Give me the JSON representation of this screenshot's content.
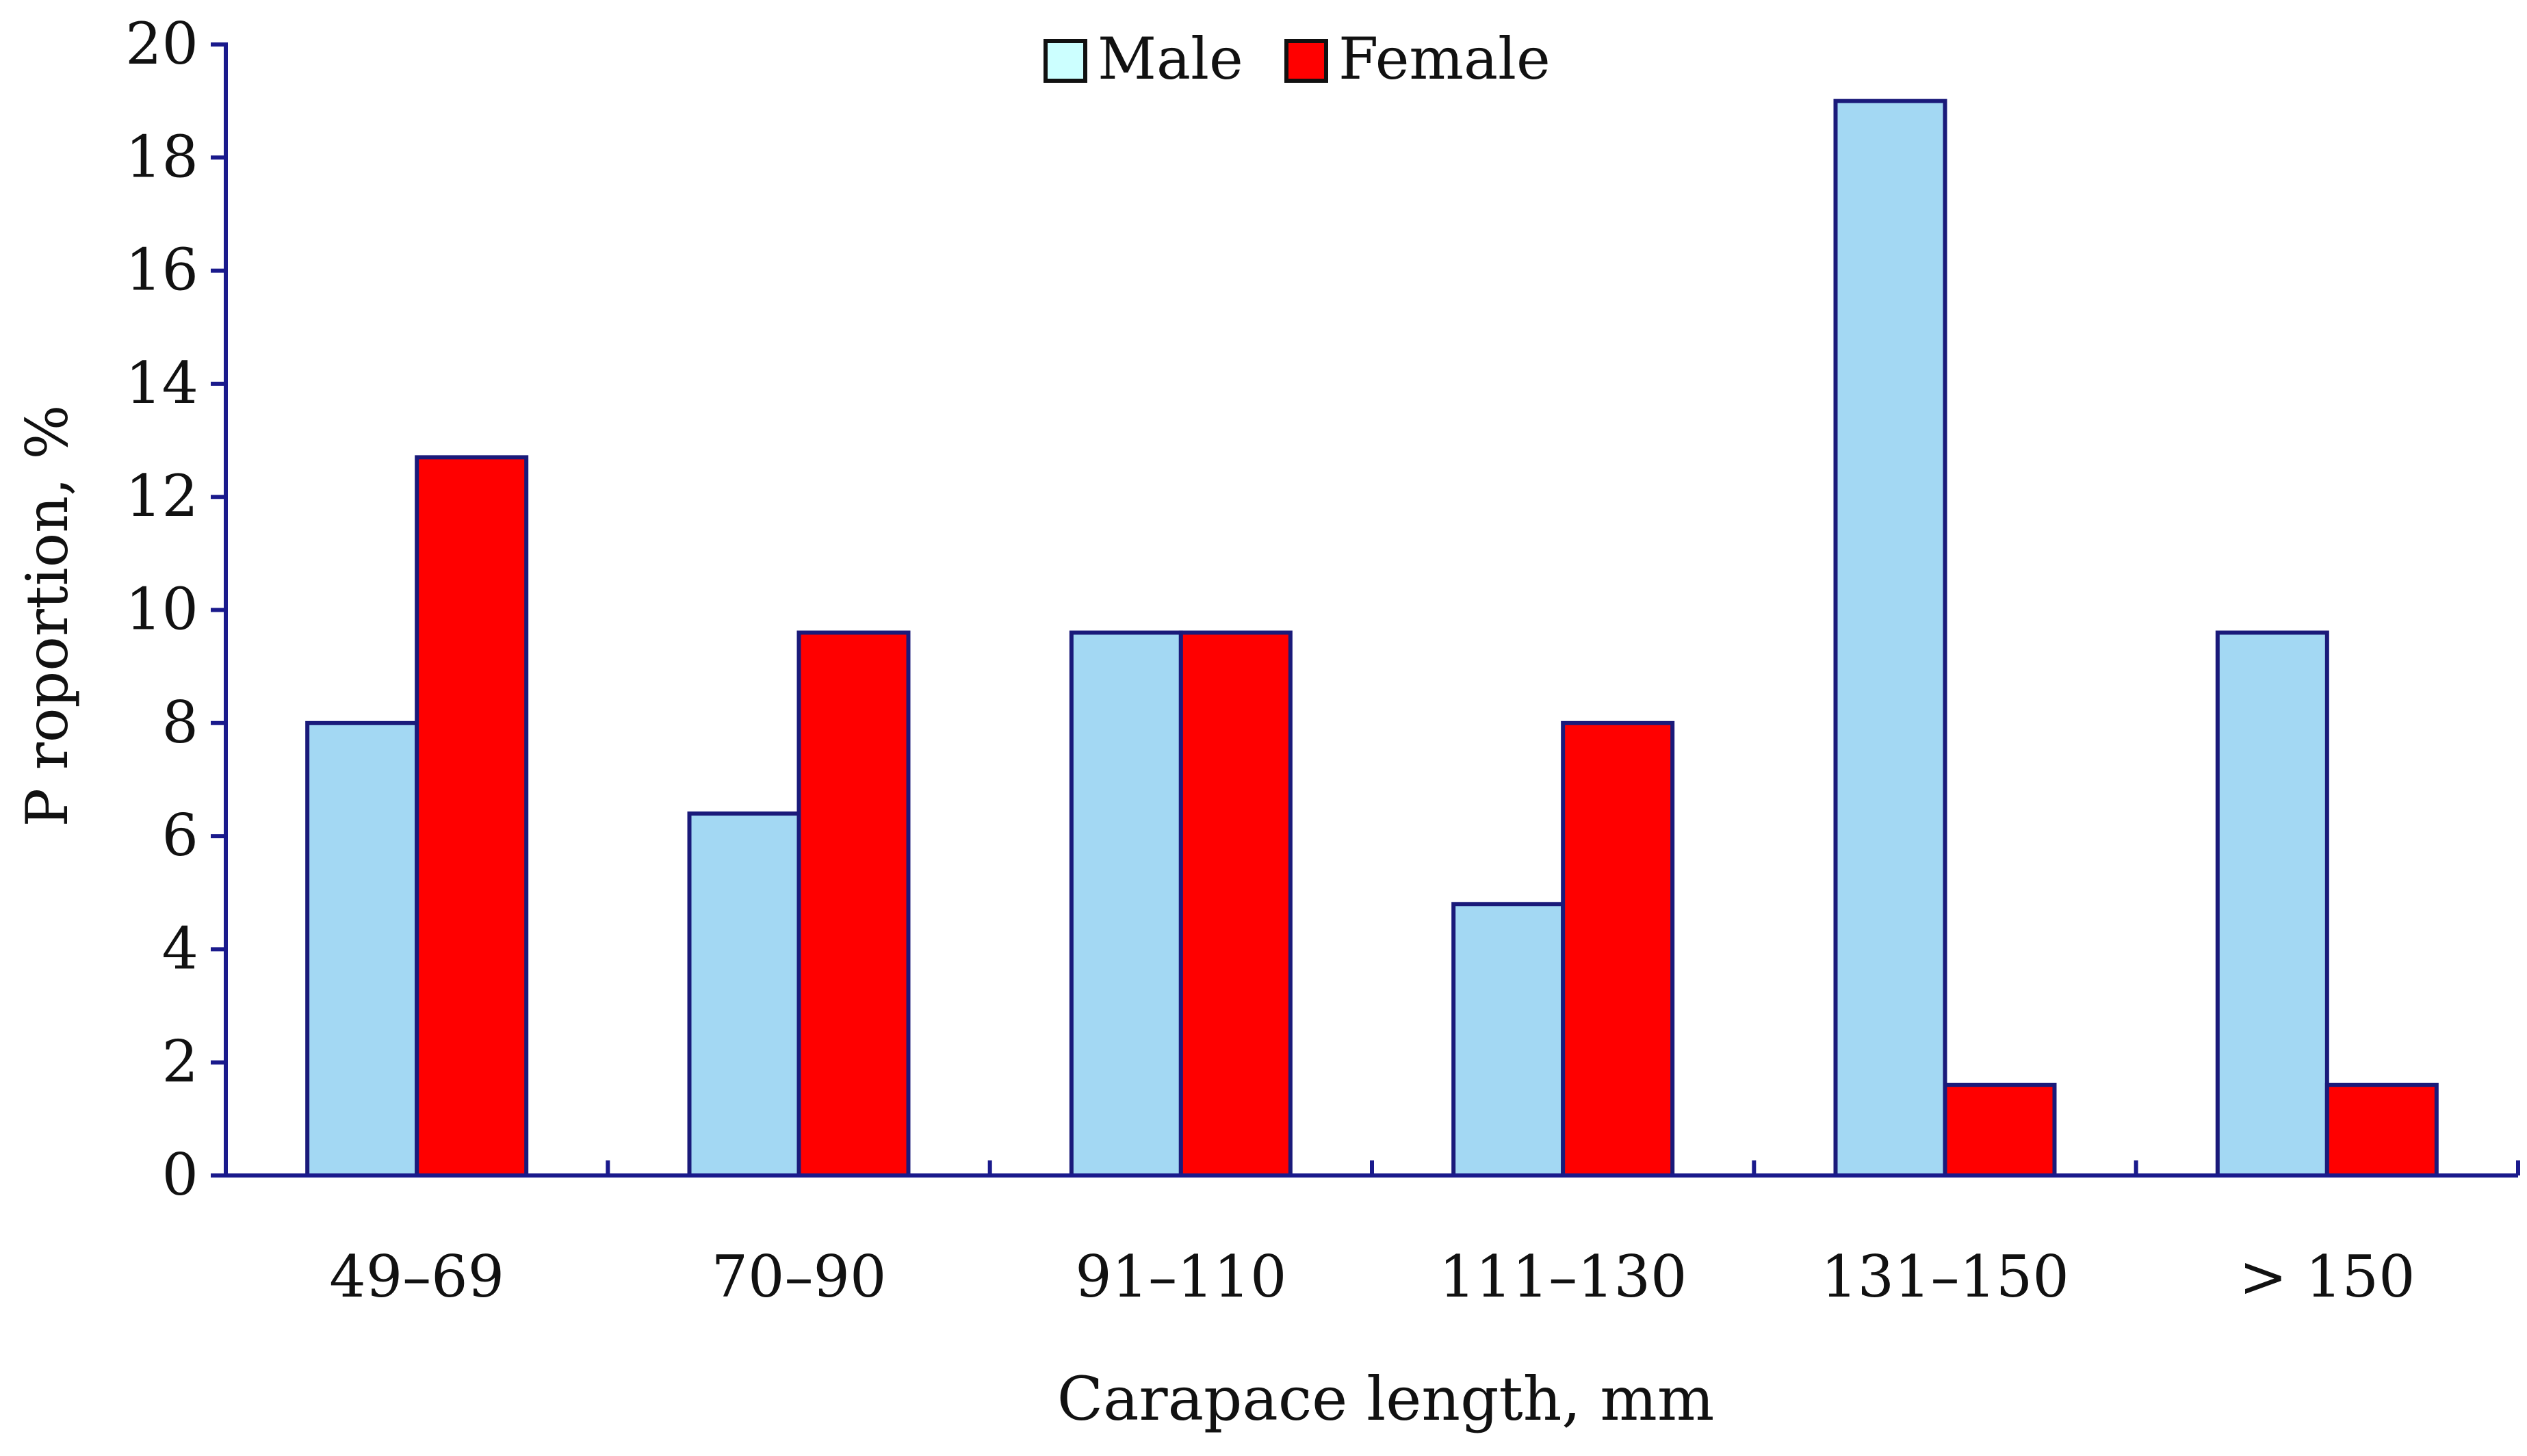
{
  "chart_data": {
    "type": "bar",
    "title": "",
    "xlabel": "Carapace length, mm",
    "ylabel": "P roportion, %",
    "categories": [
      "49–69",
      "70–90",
      "91–110",
      "111–130",
      "131–150",
      "> 150"
    ],
    "series": [
      {
        "name": "Male",
        "values": [
          8.0,
          6.4,
          9.6,
          4.8,
          19.0,
          9.6
        ]
      },
      {
        "name": "Female",
        "values": [
          12.7,
          9.6,
          9.6,
          8.0,
          1.6,
          1.6
        ]
      }
    ],
    "ylim": [
      0,
      20
    ],
    "yticks": [
      0,
      2,
      4,
      6,
      8,
      10,
      12,
      14,
      16,
      18,
      20
    ],
    "grid": false,
    "legend": "top-center",
    "colors": {
      "Male": "#a3d8f3",
      "Female": "#ff0000",
      "Male_legend": "#ccffff",
      "outline": "#1a1a7a",
      "axis": "#1a1a8c"
    }
  }
}
